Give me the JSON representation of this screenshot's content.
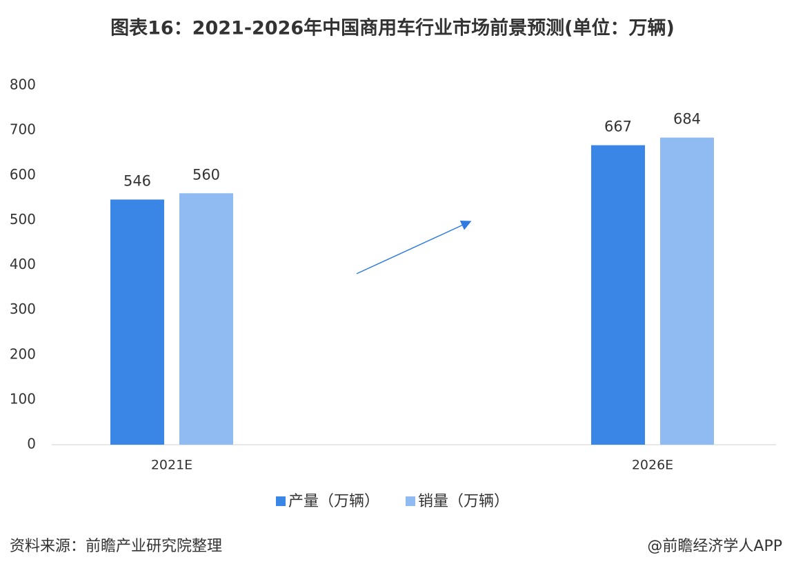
{
  "chart_data": {
    "type": "bar",
    "title": "图表16：2021-2026年中国商用车行业市场前景预测(单位：万辆)",
    "categories": [
      "2021E",
      "2026E"
    ],
    "series": [
      {
        "name": "产量（万辆）",
        "color": "#3a86e6",
        "values": [
          546,
          667
        ]
      },
      {
        "name": "销量（万辆）",
        "color": "#8fbaf2",
        "values": [
          560,
          684
        ]
      }
    ],
    "ylim": [
      0,
      800
    ],
    "yticks": [
      0,
      100,
      200,
      300,
      400,
      500,
      600,
      700,
      800
    ],
    "grid": false
  },
  "footer": {
    "source": "资料来源：前瞻产业研究院整理",
    "credit": "@前瞻经济学人APP"
  }
}
